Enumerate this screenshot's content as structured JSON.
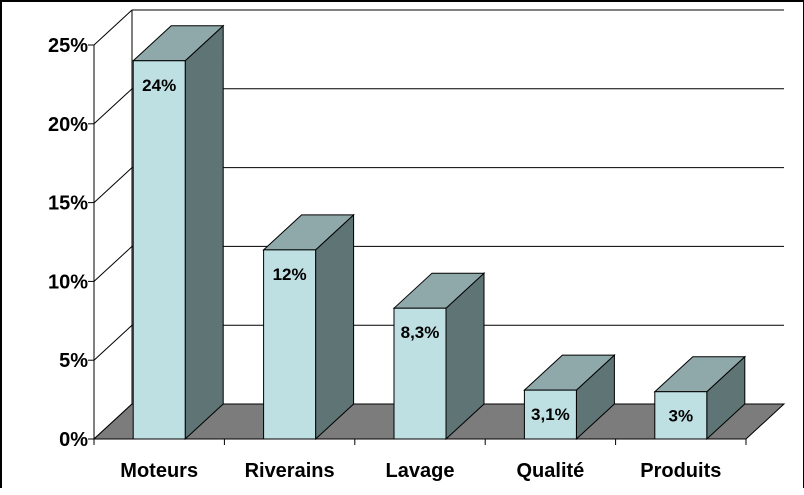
{
  "chart_data": {
    "type": "bar",
    "categories": [
      "Moteurs",
      "Riverains",
      "Lavage",
      "Qualité",
      "Produits"
    ],
    "values": [
      24,
      12,
      8.3,
      3.1,
      3
    ],
    "data_labels": [
      "24%",
      "12%",
      "8,3%",
      "3,1%",
      "3%"
    ],
    "ylim": [
      0,
      25
    ],
    "y_ticks": [
      0,
      5,
      10,
      15,
      20,
      25
    ],
    "y_tick_labels": [
      "0%",
      "5%",
      "10%",
      "15%",
      "20%",
      "25%"
    ],
    "grid": true,
    "title": "",
    "xlabel": "",
    "ylabel": "",
    "style": "3d-column",
    "colors": {
      "bar_front": "#bfe0e3",
      "bar_top": "#8fa8aa",
      "bar_side": "#5f7474",
      "floor": "#7c7c7c",
      "grid": "#000000"
    }
  }
}
